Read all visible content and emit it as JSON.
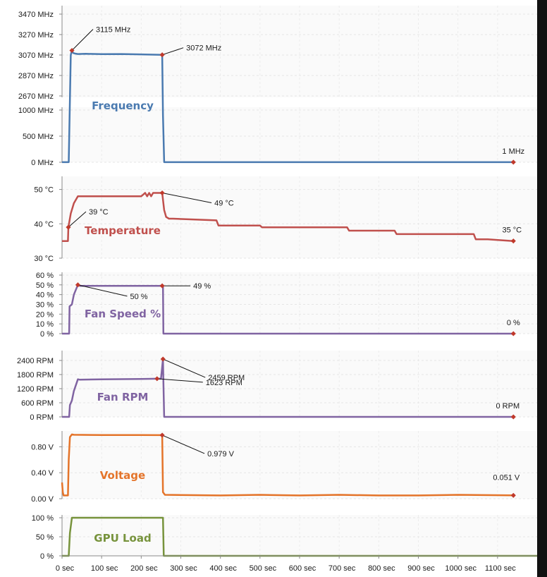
{
  "chart_data": {
    "type": "line",
    "x_axis": {
      "unit_suffix": " sec",
      "range": [
        0,
        1200
      ],
      "ticks": [
        0,
        100,
        200,
        300,
        400,
        500,
        600,
        700,
        800,
        900,
        1000,
        1100
      ],
      "tick_labels": [
        "0 sec",
        "100 sec",
        "200 sec",
        "300 sec",
        "400 sec",
        "500 sec",
        "600 sec",
        "700 sec",
        "800 sec",
        "900 sec",
        "1000 sec",
        "1100 sec"
      ]
    },
    "panels": [
      {
        "id": "frequency",
        "title": "Frequency",
        "color": "#4a7ab0",
        "unit": "MHz",
        "y_broken": true,
        "segments": [
          {
            "range": [
              2670,
              3470
            ],
            "ticks": [
              "2670 MHz",
              "2870 MHz",
              "3070 MHz",
              "3270 MHz",
              "3470 MHz"
            ]
          },
          {
            "range": [
              0,
              1000
            ],
            "ticks": [
              "0 MHz",
              "500 MHz",
              "1000 MHz"
            ]
          }
        ],
        "series": {
          "x": [
            0,
            17,
            22,
            25,
            28,
            32,
            40,
            60,
            100,
            150,
            200,
            253,
            255,
            258,
            1140
          ],
          "y": [
            1,
            1,
            3070,
            3115,
            3090,
            3085,
            3080,
            3082,
            3078,
            3080,
            3076,
            3072,
            900,
            1,
            1
          ]
        },
        "annotations": [
          {
            "x": 25,
            "y": 3115,
            "label": "3115 MHz"
          },
          {
            "x": 253,
            "y": 3072,
            "label": "3072 MHz"
          },
          {
            "x": 1140,
            "y": 1,
            "label": "1 MHz"
          }
        ]
      },
      {
        "id": "temperature",
        "title": "Temperature",
        "color": "#c0504d",
        "unit": "°C",
        "range": [
          30,
          53
        ],
        "ticks": [
          "30 °C",
          "40 °C",
          "50 °C"
        ],
        "tick_values": [
          30,
          40,
          50
        ],
        "series": {
          "x": [
            0,
            15,
            16,
            22,
            30,
            40,
            200,
            210,
            215,
            220,
            225,
            230,
            253,
            258,
            263,
            270,
            280,
            390,
            395,
            500,
            505,
            720,
            725,
            840,
            845,
            1040,
            1045,
            1075,
            1140
          ],
          "y": [
            35,
            35,
            39,
            43,
            46,
            48,
            48,
            49,
            48,
            49,
            48,
            49,
            49,
            44,
            42,
            41.5,
            41.5,
            41,
            39.5,
            39.5,
            39,
            39,
            38,
            38,
            37,
            37,
            35.5,
            35.5,
            35
          ]
        },
        "annotations": [
          {
            "x": 16,
            "y": 39,
            "label": "39 °C"
          },
          {
            "x": 253,
            "y": 49,
            "label": "49 °C"
          },
          {
            "x": 1140,
            "y": 35,
            "label": "35 °C"
          }
        ]
      },
      {
        "id": "fan_speed",
        "title": "Fan Speed %",
        "color": "#8064a2",
        "unit": "%",
        "range": [
          0,
          60
        ],
        "ticks": [
          "0 %",
          "10 %",
          "20 %",
          "30 %",
          "40 %",
          "50 %",
          "60 %"
        ],
        "tick_values": [
          0,
          10,
          20,
          30,
          40,
          50,
          60
        ],
        "series": {
          "x": [
            0,
            18,
            19,
            25,
            30,
            40,
            45,
            60,
            253,
            255,
            256,
            1140
          ],
          "y": [
            0,
            0,
            28,
            30,
            40,
            50,
            49,
            49,
            49,
            49,
            0,
            0
          ]
        },
        "annotations": [
          {
            "x": 40,
            "y": 50,
            "label": "50 %"
          },
          {
            "x": 253,
            "y": 49,
            "label": "49 %"
          },
          {
            "x": 1140,
            "y": 0,
            "label": "0 %"
          }
        ]
      },
      {
        "id": "fan_rpm",
        "title": "Fan RPM",
        "color": "#8064a2",
        "unit": "RPM",
        "range": [
          0,
          2700
        ],
        "ticks": [
          "0 RPM",
          "600 RPM",
          "1200 RPM",
          "1800 RPM",
          "2400 RPM"
        ],
        "tick_values": [
          0,
          600,
          1200,
          1800,
          2400
        ],
        "series": {
          "x": [
            0,
            18,
            20,
            25,
            30,
            40,
            45,
            100,
            200,
            240,
            250,
            255,
            256,
            258,
            1140
          ],
          "y": [
            0,
            0,
            500,
            700,
            1100,
            1600,
            1580,
            1600,
            1610,
            1623,
            1623,
            2459,
            1500,
            0,
            0
          ]
        },
        "annotations": [
          {
            "x": 240,
            "y": 1623,
            "label": "1623 RPM"
          },
          {
            "x": 255,
            "y": 2459,
            "label": "2459 RPM"
          },
          {
            "x": 1140,
            "y": 0,
            "label": "0 RPM"
          }
        ]
      },
      {
        "id": "voltage",
        "title": "Voltage",
        "color": "#e4742a",
        "unit": "V",
        "range": [
          0,
          1.0
        ],
        "ticks": [
          "0.00 V",
          "0.40 V",
          "0.80 V"
        ],
        "tick_values": [
          0,
          0.4,
          0.8
        ],
        "series": {
          "x": [
            0,
            2,
            4,
            15,
            17,
            20,
            25,
            30,
            100,
            200,
            253,
            255,
            260,
            400,
            500,
            600,
            700,
            800,
            900,
            1000,
            1140
          ],
          "y": [
            0.25,
            0.1,
            0.05,
            0.05,
            0.6,
            0.95,
            0.99,
            0.985,
            0.98,
            0.98,
            0.979,
            0.1,
            0.06,
            0.05,
            0.06,
            0.05,
            0.06,
            0.05,
            0.05,
            0.06,
            0.051
          ]
        },
        "annotations": [
          {
            "x": 253,
            "y": 0.979,
            "label": "0.979 V"
          },
          {
            "x": 1140,
            "y": 0.051,
            "label": "0.051 V"
          }
        ]
      },
      {
        "id": "gpu_load",
        "title": "GPU Load",
        "color": "#77933c",
        "unit": "%",
        "range": [
          0,
          100
        ],
        "ticks": [
          "0 %",
          "50 %",
          "100 %"
        ],
        "tick_values": [
          0,
          50,
          100
        ],
        "series": {
          "x": [
            0,
            17,
            20,
            25,
            28,
            255,
            257,
            260,
            1200
          ],
          "y": [
            0,
            0,
            60,
            100,
            100,
            100,
            0,
            0,
            0
          ]
        },
        "annotations": []
      }
    ],
    "grid": true,
    "legend": "none"
  }
}
